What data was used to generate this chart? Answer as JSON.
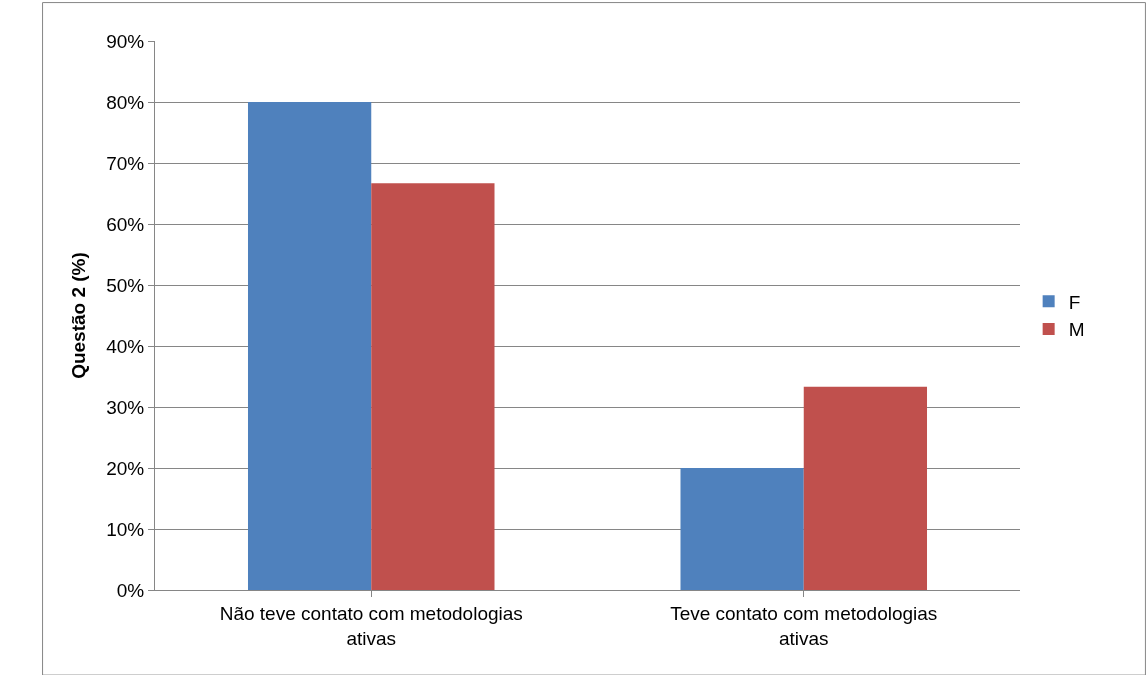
{
  "chart_data": {
    "type": "bar",
    "ylabel": "Questão 2 (%)",
    "categories": [
      "Não teve contato com metodologias ativas",
      "Teve contato com metodologias ativas"
    ],
    "series": [
      {
        "name": "F",
        "color": "#4f81bd",
        "values": [
          80,
          20
        ]
      },
      {
        "name": "M",
        "color": "#c0504d",
        "values": [
          66.7,
          33.3
        ]
      }
    ],
    "ylim": [
      0,
      90
    ],
    "yticks": [
      {
        "value": 0,
        "label": "0%"
      },
      {
        "value": 10,
        "label": "10%"
      },
      {
        "value": 20,
        "label": "20%"
      },
      {
        "value": 30,
        "label": "30%"
      },
      {
        "value": 40,
        "label": "40%"
      },
      {
        "value": 50,
        "label": "50%"
      },
      {
        "value": 60,
        "label": "60%"
      },
      {
        "value": 70,
        "label": "70%"
      },
      {
        "value": 80,
        "label": "80%"
      },
      {
        "value": 90,
        "label": "90%"
      }
    ],
    "grid": "y",
    "legend": "right"
  }
}
